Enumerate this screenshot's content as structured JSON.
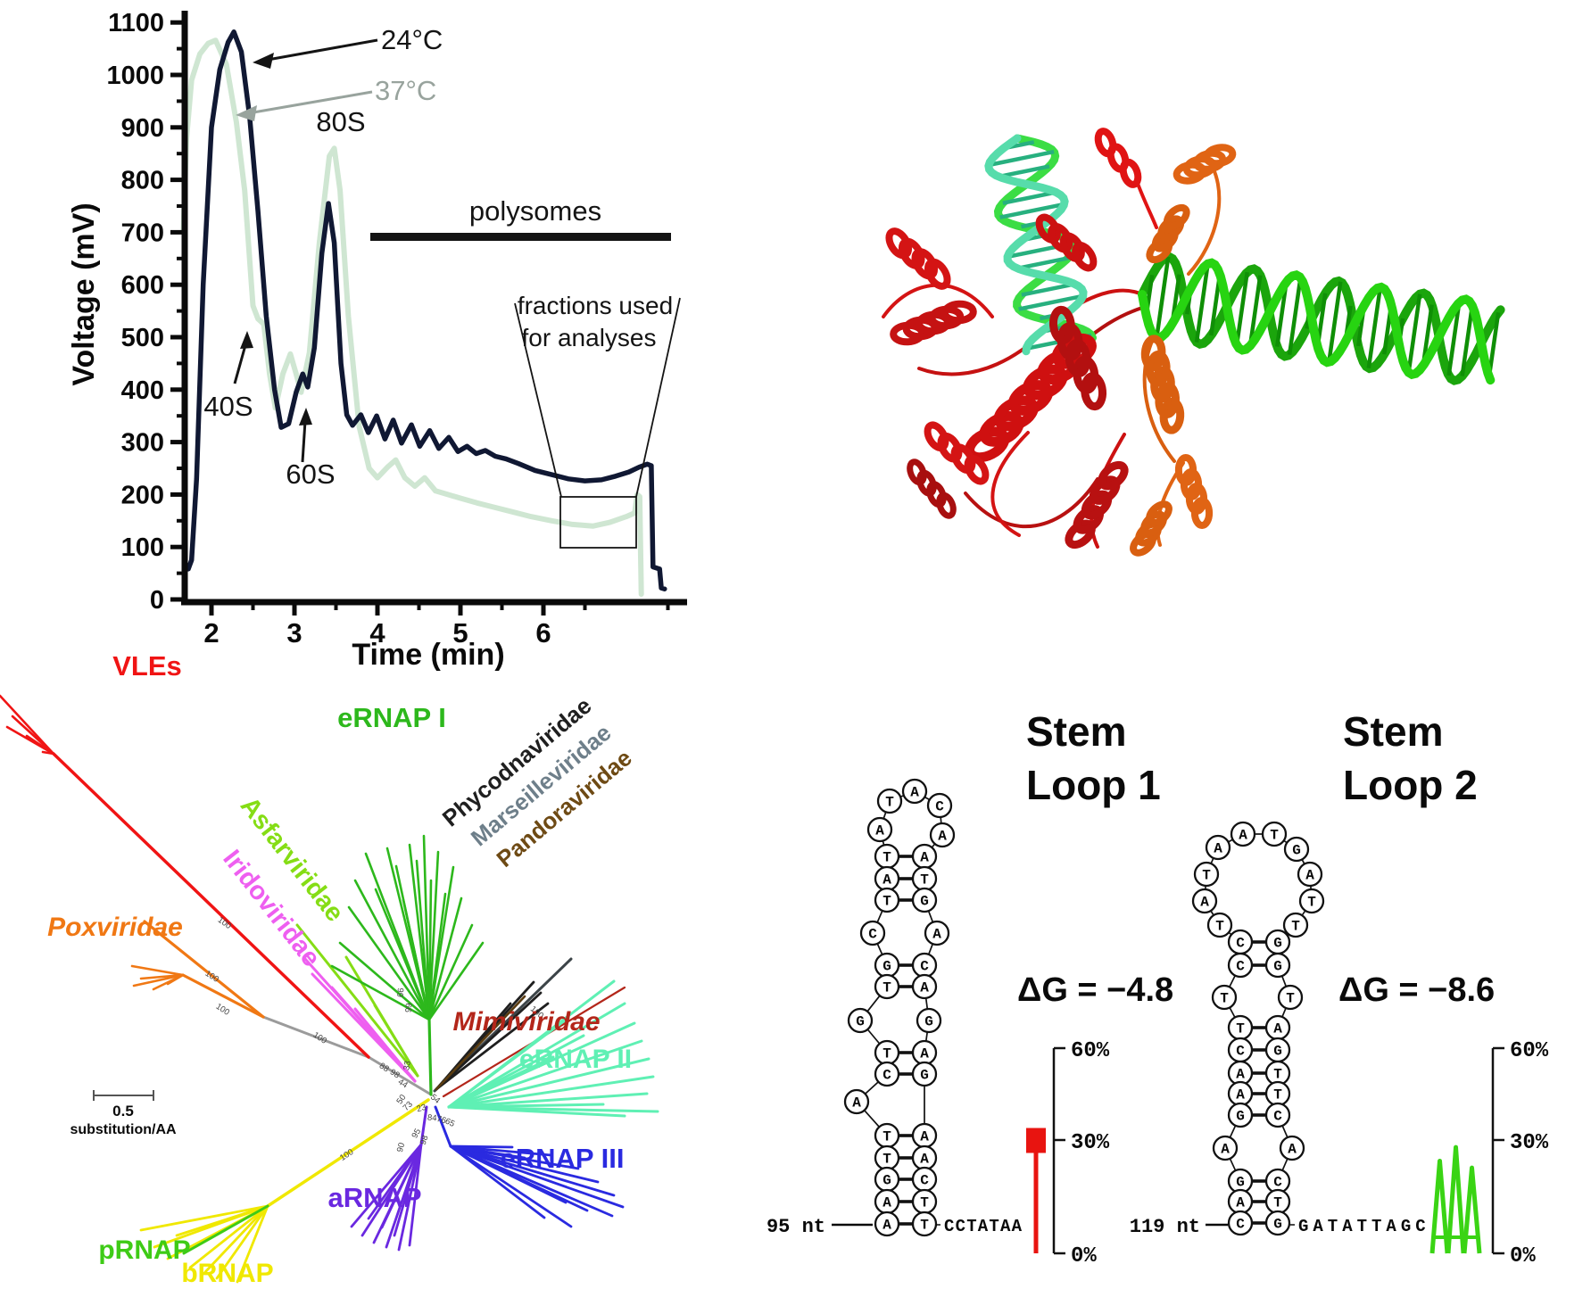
{
  "profile": {
    "ylabel": "Voltage (mV)",
    "xlabel": "Time (min)",
    "y_ticks": [
      "0",
      "100",
      "200",
      "300",
      "400",
      "500",
      "600",
      "700",
      "800",
      "900",
      "1000",
      "1100"
    ],
    "x_ticks": [
      "2",
      "3",
      "4",
      "5",
      "6"
    ],
    "labels": {
      "curve24": "24°C",
      "curve37": "37°C",
      "s40": "40S",
      "s60": "60S",
      "s80": "80S",
      "polysomes": "polysomes",
      "fractions_line1": "fractions used",
      "fractions_line2": "for analyses"
    },
    "colors": {
      "curve24": "#101833",
      "curve37": "#cfe6d2",
      "arrow37": "#98a39d"
    }
  },
  "chart_data": {
    "type": "line",
    "xlabel": "Time (min)",
    "ylabel": "Voltage (mV)",
    "xlim": [
      1.5,
      7.8
    ],
    "ylim": [
      0,
      1100
    ],
    "grid": false,
    "legend_position": "inline-arrows",
    "annotations": [
      "24°C",
      "37°C",
      "40S",
      "60S",
      "80S",
      "polysomes",
      "fractions used for analyses"
    ],
    "series": [
      {
        "name": "24°C",
        "color": "#101833",
        "points": [
          [
            1.68,
            65
          ],
          [
            1.72,
            58
          ],
          [
            1.76,
            75
          ],
          [
            1.82,
            230
          ],
          [
            1.9,
            600
          ],
          [
            2.0,
            900
          ],
          [
            2.1,
            1010
          ],
          [
            2.2,
            1062
          ],
          [
            2.27,
            1082
          ],
          [
            2.36,
            1044
          ],
          [
            2.46,
            920
          ],
          [
            2.56,
            740
          ],
          [
            2.66,
            540
          ],
          [
            2.76,
            400
          ],
          [
            2.84,
            328
          ],
          [
            2.93,
            335
          ],
          [
            3.02,
            395
          ],
          [
            3.1,
            430
          ],
          [
            3.16,
            405
          ],
          [
            3.24,
            480
          ],
          [
            3.33,
            660
          ],
          [
            3.41,
            755
          ],
          [
            3.48,
            680
          ],
          [
            3.56,
            450
          ],
          [
            3.63,
            352
          ],
          [
            3.7,
            332
          ],
          [
            3.8,
            352
          ],
          [
            3.89,
            318
          ],
          [
            3.99,
            350
          ],
          [
            4.09,
            306
          ],
          [
            4.19,
            342
          ],
          [
            4.29,
            298
          ],
          [
            4.41,
            333
          ],
          [
            4.51,
            292
          ],
          [
            4.63,
            322
          ],
          [
            4.74,
            288
          ],
          [
            4.86,
            309
          ],
          [
            4.97,
            282
          ],
          [
            5.08,
            292
          ],
          [
            5.19,
            278
          ],
          [
            5.3,
            284
          ],
          [
            5.42,
            273
          ],
          [
            5.55,
            268
          ],
          [
            5.7,
            259
          ],
          [
            5.9,
            246
          ],
          [
            6.1,
            238
          ],
          [
            6.3,
            230
          ],
          [
            6.5,
            226
          ],
          [
            6.7,
            228
          ],
          [
            6.87,
            235
          ],
          [
            7.03,
            243
          ],
          [
            7.15,
            252
          ],
          [
            7.25,
            258
          ],
          [
            7.3,
            255
          ],
          [
            7.32,
            62
          ],
          [
            7.4,
            58
          ],
          [
            7.42,
            22
          ],
          [
            7.46,
            20
          ]
        ]
      },
      {
        "name": "37°C",
        "color": "#cfe6d2",
        "points": [
          [
            1.66,
            700
          ],
          [
            1.7,
            880
          ],
          [
            1.76,
            990
          ],
          [
            1.86,
            1040
          ],
          [
            1.96,
            1060
          ],
          [
            2.05,
            1066
          ],
          [
            2.18,
            1020
          ],
          [
            2.3,
            910
          ],
          [
            2.4,
            780
          ],
          [
            2.5,
            560
          ],
          [
            2.56,
            535
          ],
          [
            2.63,
            525
          ],
          [
            2.7,
            430
          ],
          [
            2.77,
            365
          ],
          [
            2.86,
            430
          ],
          [
            2.95,
            468
          ],
          [
            3.02,
            430
          ],
          [
            3.08,
            395
          ],
          [
            3.18,
            470
          ],
          [
            3.3,
            680
          ],
          [
            3.42,
            845
          ],
          [
            3.48,
            860
          ],
          [
            3.55,
            780
          ],
          [
            3.65,
            540
          ],
          [
            3.78,
            330
          ],
          [
            3.9,
            250
          ],
          [
            4.0,
            232
          ],
          [
            4.12,
            252
          ],
          [
            4.22,
            266
          ],
          [
            4.33,
            232
          ],
          [
            4.45,
            216
          ],
          [
            4.57,
            232
          ],
          [
            4.7,
            207
          ],
          [
            4.85,
            200
          ],
          [
            5.0,
            193
          ],
          [
            5.2,
            184
          ],
          [
            5.4,
            176
          ],
          [
            5.6,
            168
          ],
          [
            5.85,
            158
          ],
          [
            6.1,
            150
          ],
          [
            6.35,
            143
          ],
          [
            6.6,
            140
          ],
          [
            6.8,
            147
          ],
          [
            7.0,
            158
          ],
          [
            7.1,
            165
          ],
          [
            7.13,
            200
          ],
          [
            7.16,
            196
          ],
          [
            7.18,
            10
          ]
        ]
      }
    ]
  },
  "structure": {
    "colors": {
      "protein_domain_red": "#d41414",
      "protein_domain_orange": "#e06414",
      "dna_green": "#27d411",
      "hybrid_teal": "#57dcab"
    }
  },
  "tree": {
    "clades": [
      {
        "id": "vles",
        "label": "VLEs",
        "color": "#f01414",
        "italic": false
      },
      {
        "id": "poxviridae",
        "label": "Poxviridae",
        "color": "#f07814",
        "italic": true
      },
      {
        "id": "asfarviridae",
        "label": "Asfarviridae",
        "color": "#85dd15",
        "italic": false
      },
      {
        "id": "iridoviridae",
        "label": "Iridoviridae",
        "color": "#ee5ff0",
        "italic": false
      },
      {
        "id": "ernap1",
        "label": "eRNAP I",
        "color": "#2db81c",
        "italic": false
      },
      {
        "id": "phycodna",
        "label": "Phycodnaviridae",
        "color": "#1f1f1f",
        "italic": false
      },
      {
        "id": "marseille",
        "label": "Marseilleviridae",
        "color": "#6e7f8a",
        "italic": false
      },
      {
        "id": "pandora",
        "label": "Pandoraviridae",
        "color": "#6e4a14",
        "italic": false
      },
      {
        "id": "mimiviridae",
        "label": "Mimiviridae",
        "color": "#b3261a",
        "italic": true
      },
      {
        "id": "ernap2",
        "label": "eRNAP II",
        "color": "#5ff0b4",
        "italic": false
      },
      {
        "id": "ernap3",
        "label": "eRNAP III",
        "color": "#2a2ae0",
        "italic": false
      },
      {
        "id": "arnap",
        "label": "aRNAP",
        "color": "#6a28e0",
        "italic": false
      },
      {
        "id": "prnap",
        "label": "pRNAP",
        "color": "#3ecb16",
        "italic": false
      },
      {
        "id": "brnap",
        "label": "bRNAP",
        "color": "#f0e800",
        "italic": false
      }
    ],
    "bootstrap_values": [
      "100",
      "100",
      "100",
      "100",
      "100",
      "100",
      "88",
      "98",
      "44",
      "33",
      "99",
      "66",
      "50",
      "73",
      "23",
      "54",
      "84",
      "76",
      "65",
      "95",
      "90",
      "98"
    ],
    "scale_bar": {
      "value": "0.5",
      "unit": "substitution/AA"
    }
  },
  "stem_loops": {
    "axis_ticks": [
      "60%",
      "30%",
      "0%"
    ],
    "loop1": {
      "title_line1": "Stem",
      "title_line2": "Loop 1",
      "dg": "ΔG  = −4.8",
      "length_label": "95 nt",
      "tail": "CCTATAA",
      "loop": [
        "A",
        "T",
        "A",
        "C",
        "A"
      ],
      "rows": [
        [
          "T",
          "A",
          1
        ],
        [
          "A",
          "T",
          1
        ],
        [
          "T",
          "G",
          1
        ],
        [
          "C",
          "A",
          0
        ],
        [
          "G",
          "C",
          1
        ],
        [
          "T",
          "A",
          1
        ],
        [
          "G",
          "G",
          0
        ],
        [
          "T",
          "A",
          1
        ],
        [
          "C",
          "G",
          1
        ],
        [
          "A",
          "",
          0
        ],
        [
          "T",
          "A",
          1
        ],
        [
          "T",
          "A",
          1
        ],
        [
          "G",
          "C",
          1
        ],
        [
          "A",
          "T",
          1
        ],
        [
          "A",
          "T",
          1
        ]
      ],
      "bar_percent": 33,
      "bar_color": "#e81410"
    },
    "loop2": {
      "title_line1": "Stem",
      "title_line2": "Loop 2",
      "dg": "ΔG  = −8.6",
      "length_label": "119 nt",
      "tail": "GATATTAGC",
      "loop": [
        "T",
        "A",
        "T",
        "A",
        "A",
        "T",
        "G",
        "A",
        "T",
        "T"
      ],
      "rows": [
        [
          "C",
          "G",
          1
        ],
        [
          "C",
          "G",
          1
        ],
        [
          "T",
          "T",
          0
        ],
        [
          "T",
          "A",
          1
        ],
        [
          "C",
          "G",
          1
        ],
        [
          "A",
          "T",
          1
        ],
        [
          "A",
          "T",
          1
        ],
        [
          "G",
          "C",
          1
        ],
        [
          "A",
          "A",
          0
        ],
        [
          "G",
          "C",
          1
        ],
        [
          "A",
          "T",
          1
        ],
        [
          "C",
          "G",
          1
        ]
      ],
      "logo_letters": [
        "A",
        "A",
        "A"
      ],
      "logo_heights_pct": [
        27,
        31,
        25
      ],
      "logo_color": "#3ad414"
    }
  }
}
